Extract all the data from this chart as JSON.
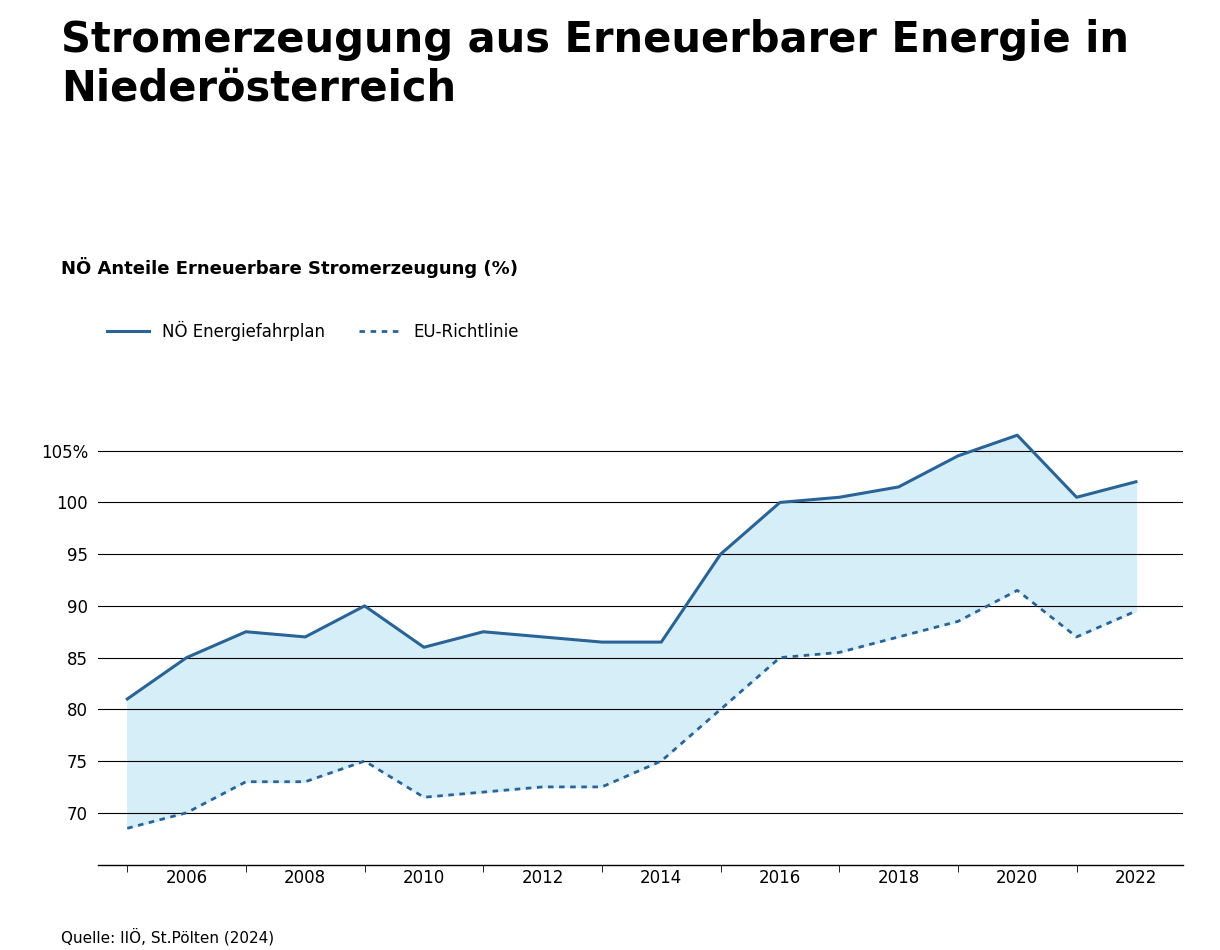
{
  "title": "Stromerzeugung aus Erneuerbarer Energie in\nNiederösterreich",
  "subtitle": "NÖ Anteile Erneuerbare Stromerzeugung (%)",
  "legend_solid": "NÖ Energiefahrplan",
  "legend_dotted": "EU-Richtlinie",
  "source": "Quelle: IIÖ, St.Pölten (2024)",
  "line_color": "#2a6496",
  "fill_color": "#d6eef8",
  "years_line1": [
    2005,
    2006,
    2007,
    2008,
    2009,
    2010,
    2011,
    2012,
    2013,
    2014,
    2015,
    2016,
    2017,
    2018,
    2019,
    2020,
    2021,
    2022
  ],
  "values_line1": [
    81.0,
    85.0,
    87.5,
    87.0,
    90.0,
    86.0,
    87.5,
    87.0,
    86.5,
    86.5,
    95.0,
    100.0,
    100.5,
    101.5,
    104.5,
    106.5,
    100.5,
    102.0
  ],
  "years_line2": [
    2005,
    2006,
    2007,
    2008,
    2009,
    2010,
    2011,
    2012,
    2013,
    2014,
    2015,
    2016,
    2017,
    2018,
    2019,
    2020,
    2021,
    2022
  ],
  "values_line2": [
    68.5,
    70.0,
    73.0,
    73.0,
    75.0,
    71.5,
    72.0,
    72.5,
    72.5,
    75.0,
    80.0,
    85.0,
    85.5,
    87.0,
    88.5,
    91.5,
    87.0,
    89.5
  ],
  "ylim": [
    65,
    110
  ],
  "yticks": [
    70,
    75,
    80,
    85,
    90,
    95,
    100,
    105
  ],
  "ytick_labels": [
    "70",
    "75",
    "80",
    "85",
    "90",
    "95",
    "100",
    "105%"
  ],
  "xticks_major": [
    2006,
    2008,
    2010,
    2012,
    2014,
    2016,
    2018,
    2020,
    2022
  ],
  "xticks_minor": [
    2005,
    2007,
    2009,
    2011,
    2013,
    2015,
    2017,
    2019,
    2021
  ],
  "xlim": [
    2004.5,
    2022.8
  ],
  "background_color": "#ffffff",
  "title_fontsize": 30,
  "subtitle_fontsize": 13,
  "axis_fontsize": 12,
  "source_fontsize": 11
}
